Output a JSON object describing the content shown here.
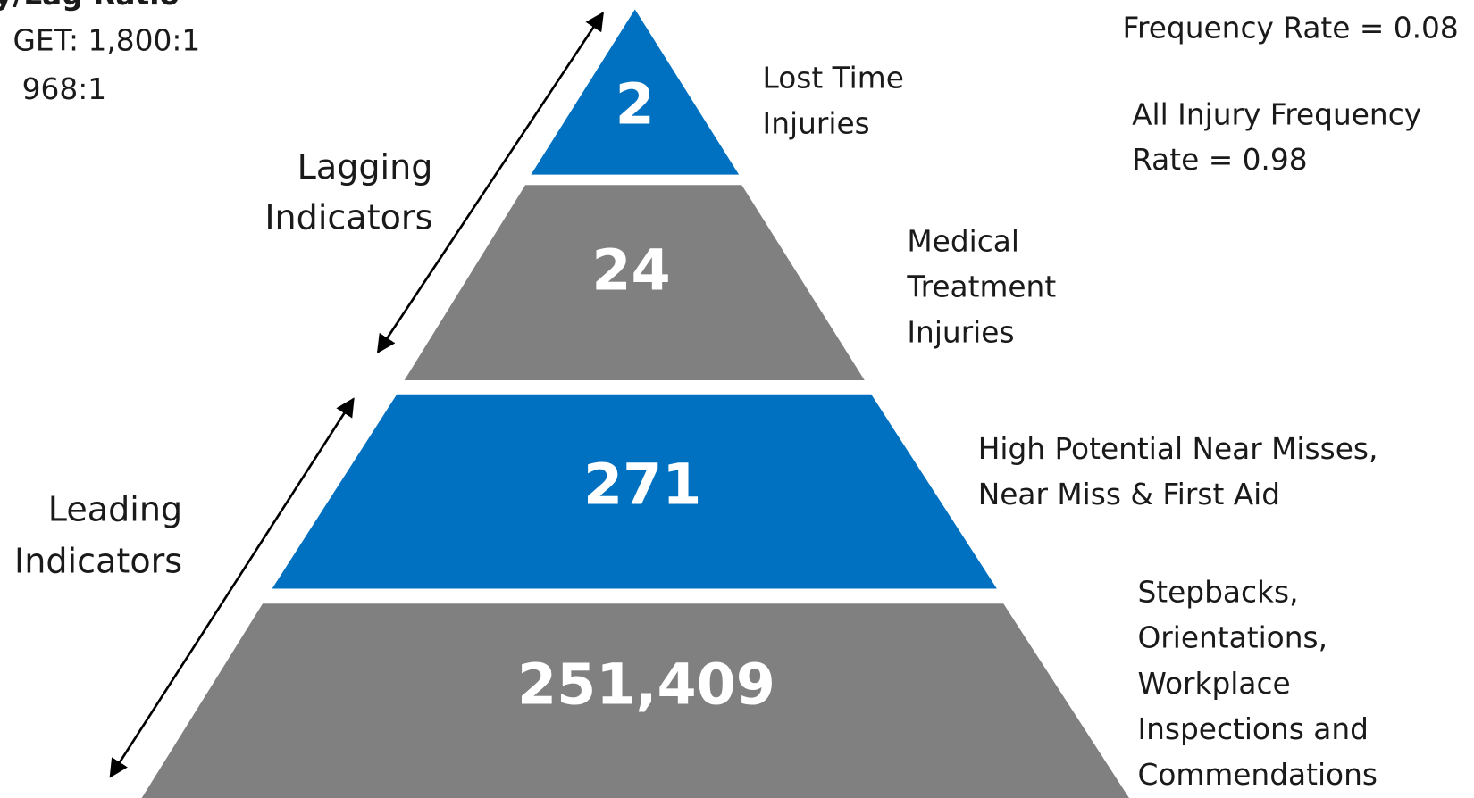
{
  "left_note": {
    "title": "y/Lag Ratio",
    "target": "GET: 1,800:1",
    "actual": "968:1"
  },
  "right_notes": {
    "lost_time_rate": [
      "Frequency Rate = 0.08"
    ],
    "all_injury_rate": [
      "All Injury Frequency",
      "Rate = 0.98"
    ]
  },
  "indicators": {
    "lagging": [
      "Lagging",
      "Indicators"
    ],
    "leading": [
      "Leading",
      "Indicators"
    ]
  },
  "pyramid": [
    {
      "value": "2",
      "label": [
        "Lost Time",
        "Injuries"
      ]
    },
    {
      "value": "24",
      "label": [
        "Medical",
        "Treatment",
        "Injuries"
      ]
    },
    {
      "value": "271",
      "label": [
        "High Potential Near Misses,",
        "Near Miss & First Aid"
      ]
    },
    {
      "value": "251,409",
      "label": [
        "Stepbacks,",
        "Orientations,",
        "Workplace",
        "Inspections and",
        "Commendations"
      ]
    }
  ]
}
